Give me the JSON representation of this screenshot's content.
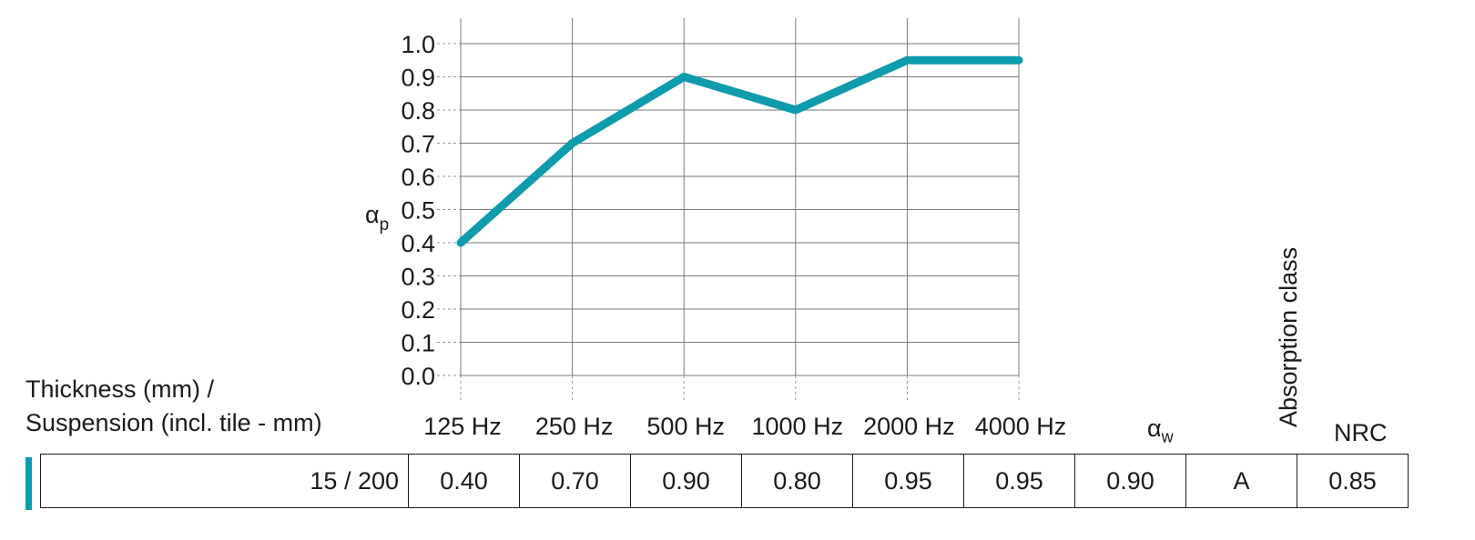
{
  "chart_data": {
    "type": "line",
    "categories": [
      "125 Hz",
      "250 Hz",
      "500 Hz",
      "1000 Hz",
      "2000 Hz",
      "4000 Hz"
    ],
    "series": [
      {
        "values": [
          0.4,
          0.7,
          0.9,
          0.8,
          0.95,
          0.95
        ]
      }
    ],
    "ylabel": "α",
    "ylabel_subscript": "p",
    "ylim": [
      0.0,
      1.0
    ],
    "yticks": [
      "0.0",
      "0.1",
      "0.2",
      "0.3",
      "0.4",
      "0.5",
      "0.6",
      "0.7",
      "0.8",
      "0.9",
      "1.0"
    ],
    "grid": true,
    "line_color": "#0E9BAD"
  },
  "table": {
    "header_label_line1": "Thickness (mm) /",
    "header_label_line2": "Suspension (incl. tile - mm)",
    "alpha_w_label": "α",
    "alpha_w_subscript": "w",
    "absorption_class_label": "Absorption class",
    "nrc_label": "NRC",
    "row": [
      "15 / 200",
      "0.40",
      "0.70",
      "0.90",
      "0.80",
      "0.95",
      "0.95",
      "0.90",
      "A",
      "0.85"
    ],
    "accent_color": "#0E9BAD"
  }
}
